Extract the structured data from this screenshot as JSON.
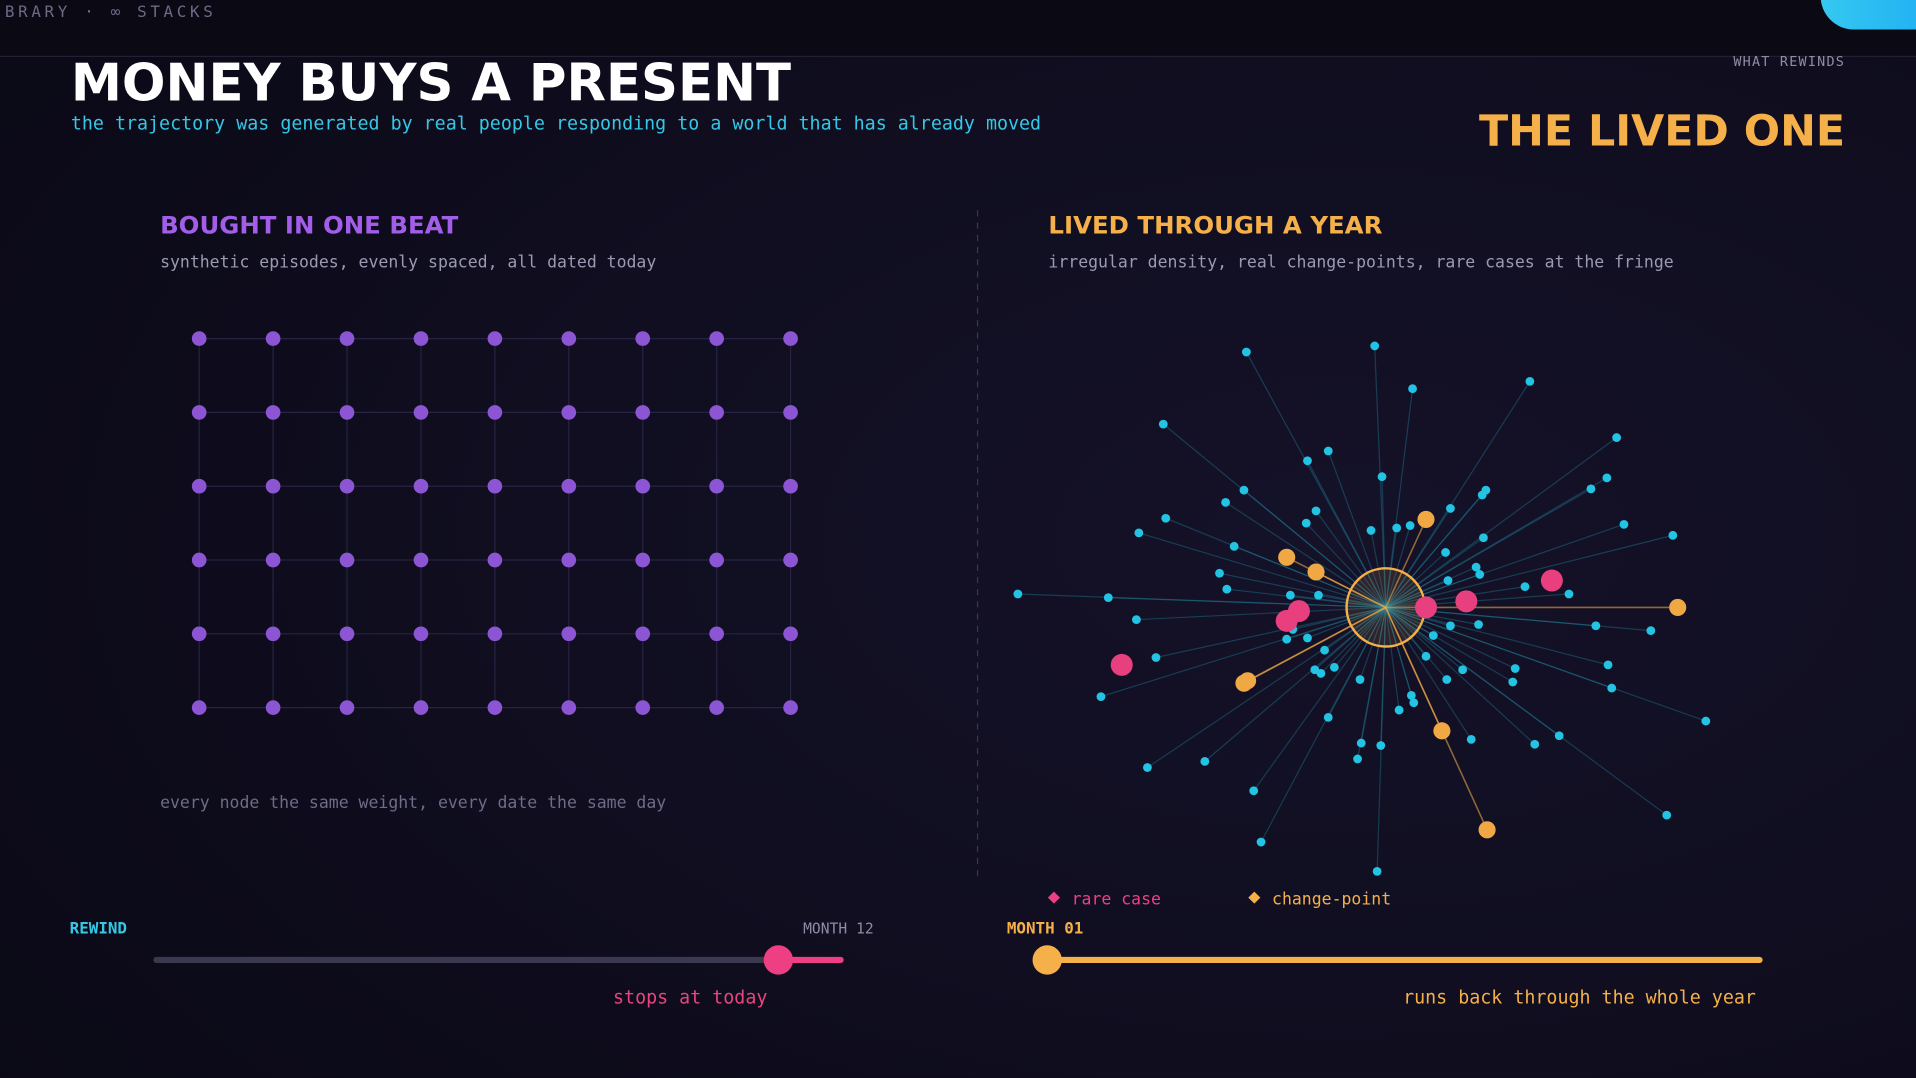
{
  "header": {
    "breadcrumb": "BRARY · ∞ STACKS",
    "title": "MONEY BUYS A PRESENT",
    "subtitle": "the trajectory was generated by real people responding to a world that has already moved",
    "kicker": "WHAT REWINDS",
    "headline": "THE LIVED ONE"
  },
  "left_panel": {
    "title": "BOUGHT IN ONE BEAT",
    "subtitle": "synthetic episodes, evenly spaced, all dated today",
    "footnote": "every node the same weight, every date the same day"
  },
  "right_panel": {
    "title": "LIVED THROUGH A YEAR",
    "subtitle": "irregular density, real change-points, rare cases at the fringe",
    "legend": [
      "rare case",
      "change-point"
    ]
  },
  "left_slider": {
    "label": "REWIND",
    "end_label": "MONTH 12",
    "caption": "stops at today"
  },
  "right_slider": {
    "label": "MONTH 01",
    "caption": "runs back through the whole year"
  }
}
